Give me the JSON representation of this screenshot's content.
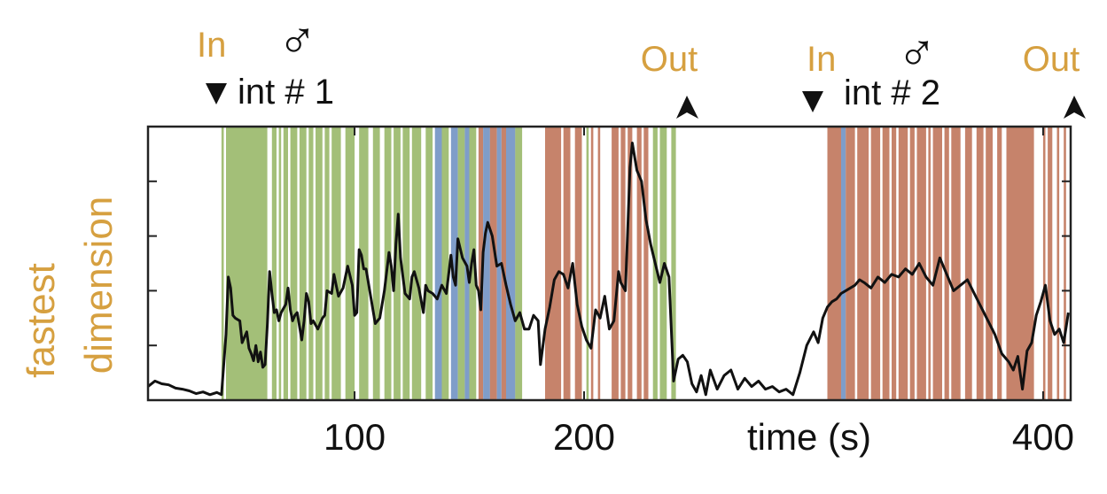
{
  "chart_data": {
    "type": "line",
    "title": "",
    "xlabel": "time (s)",
    "ylabel": [
      "fastest",
      "dimension"
    ],
    "xlim": [
      10,
      412
    ],
    "ylim": [
      0,
      5
    ],
    "xticks": [
      100,
      200,
      400
    ],
    "xtick_labels": [
      "100",
      "200",
      "400"
    ],
    "y_tick_marks": 5,
    "grid": false,
    "colors": {
      "line": "#111111",
      "band_green": "#a3bf78",
      "band_blue": "#7f9dc9",
      "band_red": "#c6836b",
      "label_orange": "#d6a040"
    },
    "annotations": [
      {
        "name": "in-1",
        "text": "In",
        "x": 41
      },
      {
        "name": "male-1",
        "text": "♂"
      },
      {
        "name": "int-1",
        "text": "int # 1"
      },
      {
        "name": "out-1",
        "text": "Out",
        "x": 233
      },
      {
        "name": "in-2",
        "text": "In",
        "x": 301
      },
      {
        "name": "male-2",
        "text": "♂"
      },
      {
        "name": "int-2",
        "text": "int # 2"
      },
      {
        "name": "out-2",
        "text": "Out",
        "x": 411
      }
    ],
    "bands": [
      {
        "x0": 42,
        "x1": 43,
        "color": "green"
      },
      {
        "x0": 44,
        "x1": 62,
        "color": "green"
      },
      {
        "x0": 64,
        "x1": 66,
        "color": "green"
      },
      {
        "x0": 67,
        "x1": 68,
        "color": "green"
      },
      {
        "x0": 69,
        "x1": 71,
        "color": "green"
      },
      {
        "x0": 72,
        "x1": 75,
        "color": "green"
      },
      {
        "x0": 76,
        "x1": 79,
        "color": "green"
      },
      {
        "x0": 80,
        "x1": 82,
        "color": "green"
      },
      {
        "x0": 83,
        "x1": 86,
        "color": "green"
      },
      {
        "x0": 87,
        "x1": 89,
        "color": "green"
      },
      {
        "x0": 90,
        "x1": 94,
        "color": "green"
      },
      {
        "x0": 96,
        "x1": 100,
        "color": "green"
      },
      {
        "x0": 102,
        "x1": 106,
        "color": "green"
      },
      {
        "x0": 108,
        "x1": 111,
        "color": "green"
      },
      {
        "x0": 113,
        "x1": 116,
        "color": "green"
      },
      {
        "x0": 117,
        "x1": 120,
        "color": "green"
      },
      {
        "x0": 121,
        "x1": 124,
        "color": "green"
      },
      {
        "x0": 125,
        "x1": 129,
        "color": "green"
      },
      {
        "x0": 131,
        "x1": 134,
        "color": "green"
      },
      {
        "x0": 135,
        "x1": 138,
        "color": "blue"
      },
      {
        "x0": 138,
        "x1": 141,
        "color": "green"
      },
      {
        "x0": 142,
        "x1": 145,
        "color": "blue"
      },
      {
        "x0": 145,
        "x1": 148,
        "color": "green"
      },
      {
        "x0": 148,
        "x1": 150,
        "color": "blue"
      },
      {
        "x0": 150,
        "x1": 153,
        "color": "green"
      },
      {
        "x0": 154,
        "x1": 156,
        "color": "red"
      },
      {
        "x0": 156,
        "x1": 159,
        "color": "blue"
      },
      {
        "x0": 159,
        "x1": 162,
        "color": "red"
      },
      {
        "x0": 162,
        "x1": 164,
        "color": "blue"
      },
      {
        "x0": 164,
        "x1": 166,
        "color": "red"
      },
      {
        "x0": 166,
        "x1": 170,
        "color": "blue"
      },
      {
        "x0": 170,
        "x1": 173,
        "color": "green"
      },
      {
        "x0": 183,
        "x1": 190,
        "color": "red"
      },
      {
        "x0": 191,
        "x1": 194,
        "color": "red"
      },
      {
        "x0": 196,
        "x1": 199,
        "color": "red"
      },
      {
        "x0": 201,
        "x1": 202,
        "color": "green"
      },
      {
        "x0": 203,
        "x1": 204,
        "color": "red"
      },
      {
        "x0": 206,
        "x1": 207,
        "color": "red"
      },
      {
        "x0": 212,
        "x1": 215,
        "color": "red"
      },
      {
        "x0": 216,
        "x1": 218,
        "color": "red"
      },
      {
        "x0": 219,
        "x1": 221,
        "color": "red"
      },
      {
        "x0": 223,
        "x1": 225,
        "color": "red"
      },
      {
        "x0": 226,
        "x1": 228,
        "color": "red"
      },
      {
        "x0": 230,
        "x1": 232,
        "color": "green"
      },
      {
        "x0": 233,
        "x1": 236,
        "color": "green"
      },
      {
        "x0": 238,
        "x1": 240,
        "color": "green"
      },
      {
        "x0": 306,
        "x1": 312,
        "color": "red"
      },
      {
        "x0": 312,
        "x1": 314,
        "color": "blue"
      },
      {
        "x0": 314,
        "x1": 318,
        "color": "red"
      },
      {
        "x0": 319,
        "x1": 324,
        "color": "red"
      },
      {
        "x0": 325,
        "x1": 329,
        "color": "red"
      },
      {
        "x0": 330,
        "x1": 333,
        "color": "red"
      },
      {
        "x0": 334,
        "x1": 336,
        "color": "red"
      },
      {
        "x0": 337,
        "x1": 341,
        "color": "red"
      },
      {
        "x0": 342,
        "x1": 344,
        "color": "red"
      },
      {
        "x0": 345,
        "x1": 349,
        "color": "red"
      },
      {
        "x0": 350,
        "x1": 351,
        "color": "red"
      },
      {
        "x0": 352,
        "x1": 356,
        "color": "red"
      },
      {
        "x0": 357,
        "x1": 359,
        "color": "red"
      },
      {
        "x0": 360,
        "x1": 364,
        "color": "red"
      },
      {
        "x0": 366,
        "x1": 369,
        "color": "red"
      },
      {
        "x0": 371,
        "x1": 374,
        "color": "red"
      },
      {
        "x0": 375,
        "x1": 378,
        "color": "red"
      },
      {
        "x0": 380,
        "x1": 382,
        "color": "red"
      },
      {
        "x0": 384,
        "x1": 396,
        "color": "red"
      },
      {
        "x0": 400,
        "x1": 401,
        "color": "red"
      },
      {
        "x0": 402,
        "x1": 404,
        "color": "red"
      },
      {
        "x0": 406,
        "x1": 407,
        "color": "red"
      },
      {
        "x0": 409,
        "x1": 410,
        "color": "red"
      }
    ],
    "series": [
      {
        "name": "fastest dimension",
        "x": [
          10,
          13,
          16,
          19,
          22,
          25,
          28,
          31,
          34,
          37,
          40,
          42,
          44,
          45,
          46,
          47,
          48,
          50,
          51,
          53,
          54,
          55,
          56,
          57,
          58,
          59,
          60,
          61,
          62,
          63,
          64,
          65,
          66,
          67,
          68,
          70,
          71,
          72,
          73,
          74,
          75,
          77,
          78,
          79,
          80,
          81,
          82,
          84,
          86,
          87,
          88,
          90,
          91,
          92,
          93,
          95,
          97,
          99,
          100,
          101,
          102,
          103,
          104,
          105,
          107,
          109,
          111,
          113,
          115,
          116,
          117,
          118,
          119,
          120,
          122,
          124,
          125,
          126,
          128,
          130,
          131,
          132,
          134,
          136,
          138,
          140,
          142,
          143,
          144,
          145,
          147,
          149,
          150,
          151,
          152,
          153,
          154,
          155,
          156,
          157,
          158,
          160,
          162,
          164,
          166,
          168,
          170,
          172,
          174,
          176,
          178,
          180,
          181,
          183,
          185,
          187,
          189,
          191,
          193,
          195,
          197,
          199,
          201,
          203,
          205,
          207,
          209,
          211,
          213,
          215,
          216,
          218,
          219,
          220,
          221,
          222,
          223,
          225,
          227,
          229,
          231,
          233,
          235,
          237,
          239,
          241,
          243,
          245,
          247,
          249,
          251,
          253,
          255,
          258,
          261,
          264,
          267,
          270,
          273,
          276,
          279,
          282,
          285,
          288,
          291,
          294,
          297,
          300,
          302,
          304,
          306,
          308,
          310,
          312,
          314,
          316,
          318,
          320,
          322,
          325,
          328,
          331,
          334,
          337,
          340,
          343,
          346,
          349,
          352,
          355,
          358,
          361,
          364,
          367,
          370,
          373,
          376,
          379,
          382,
          385,
          387,
          389,
          391,
          393,
          395,
          397,
          399,
          401,
          403,
          405,
          407,
          409,
          411
        ],
        "y": [
          0.25,
          0.35,
          0.3,
          0.28,
          0.22,
          0.2,
          0.17,
          0.12,
          0.15,
          0.1,
          0.14,
          0.1,
          1.2,
          2.25,
          2.05,
          1.55,
          1.5,
          1.45,
          1.05,
          1.25,
          0.95,
          0.85,
          0.72,
          1.0,
          0.7,
          0.88,
          0.6,
          0.65,
          1.4,
          2.35,
          1.95,
          1.6,
          1.65,
          1.45,
          1.6,
          1.75,
          2.05,
          1.65,
          1.45,
          1.55,
          1.6,
          1.1,
          1.45,
          1.95,
          1.8,
          1.4,
          1.45,
          1.3,
          1.5,
          1.55,
          2.0,
          1.95,
          2.3,
          2.1,
          1.9,
          2.05,
          2.45,
          2.1,
          1.55,
          1.6,
          2.75,
          2.65,
          2.4,
          2.4,
          1.9,
          1.4,
          1.5,
          2.0,
          2.7,
          2.45,
          2.0,
          2.85,
          3.4,
          2.6,
          1.95,
          1.85,
          2.25,
          2.35,
          2.05,
          1.6,
          2.1,
          2.0,
          1.95,
          1.85,
          2.1,
          1.95,
          2.65,
          2.25,
          2.1,
          2.95,
          2.6,
          2.45,
          2.15,
          2.5,
          2.75,
          2.1,
          2.0,
          1.65,
          2.7,
          3.05,
          3.25,
          3.0,
          2.45,
          2.5,
          2.1,
          1.75,
          1.45,
          1.6,
          1.3,
          1.3,
          1.55,
          1.45,
          0.65,
          1.3,
          1.7,
          2.2,
          2.35,
          2.3,
          2.05,
          2.5,
          1.75,
          1.35,
          1.1,
          0.95,
          1.65,
          1.5,
          1.9,
          1.3,
          1.45,
          2.35,
          2.15,
          2.0,
          3.1,
          4.25,
          4.7,
          4.45,
          4.2,
          4.0,
          3.3,
          2.85,
          2.5,
          2.15,
          2.5,
          2.25,
          0.35,
          0.75,
          0.82,
          0.7,
          0.3,
          0.15,
          0.45,
          0.1,
          0.55,
          0.2,
          0.45,
          0.55,
          0.2,
          0.4,
          0.25,
          0.35,
          0.2,
          0.25,
          0.15,
          0.2,
          0.1,
          0.5,
          1.0,
          1.25,
          1.05,
          1.5,
          1.7,
          1.8,
          1.85,
          1.95,
          2.0,
          2.05,
          2.1,
          2.2,
          2.15,
          2.05,
          2.25,
          2.15,
          2.3,
          2.25,
          2.4,
          2.3,
          2.5,
          2.25,
          2.1,
          2.6,
          2.3,
          2.0,
          2.1,
          2.2,
          1.95,
          1.7,
          1.45,
          1.2,
          0.85,
          0.7,
          0.55,
          0.8,
          0.2,
          0.9,
          1.05,
          1.55,
          1.8,
          2.1,
          1.45,
          1.2,
          1.3,
          1.05,
          1.6
        ]
      }
    ]
  }
}
